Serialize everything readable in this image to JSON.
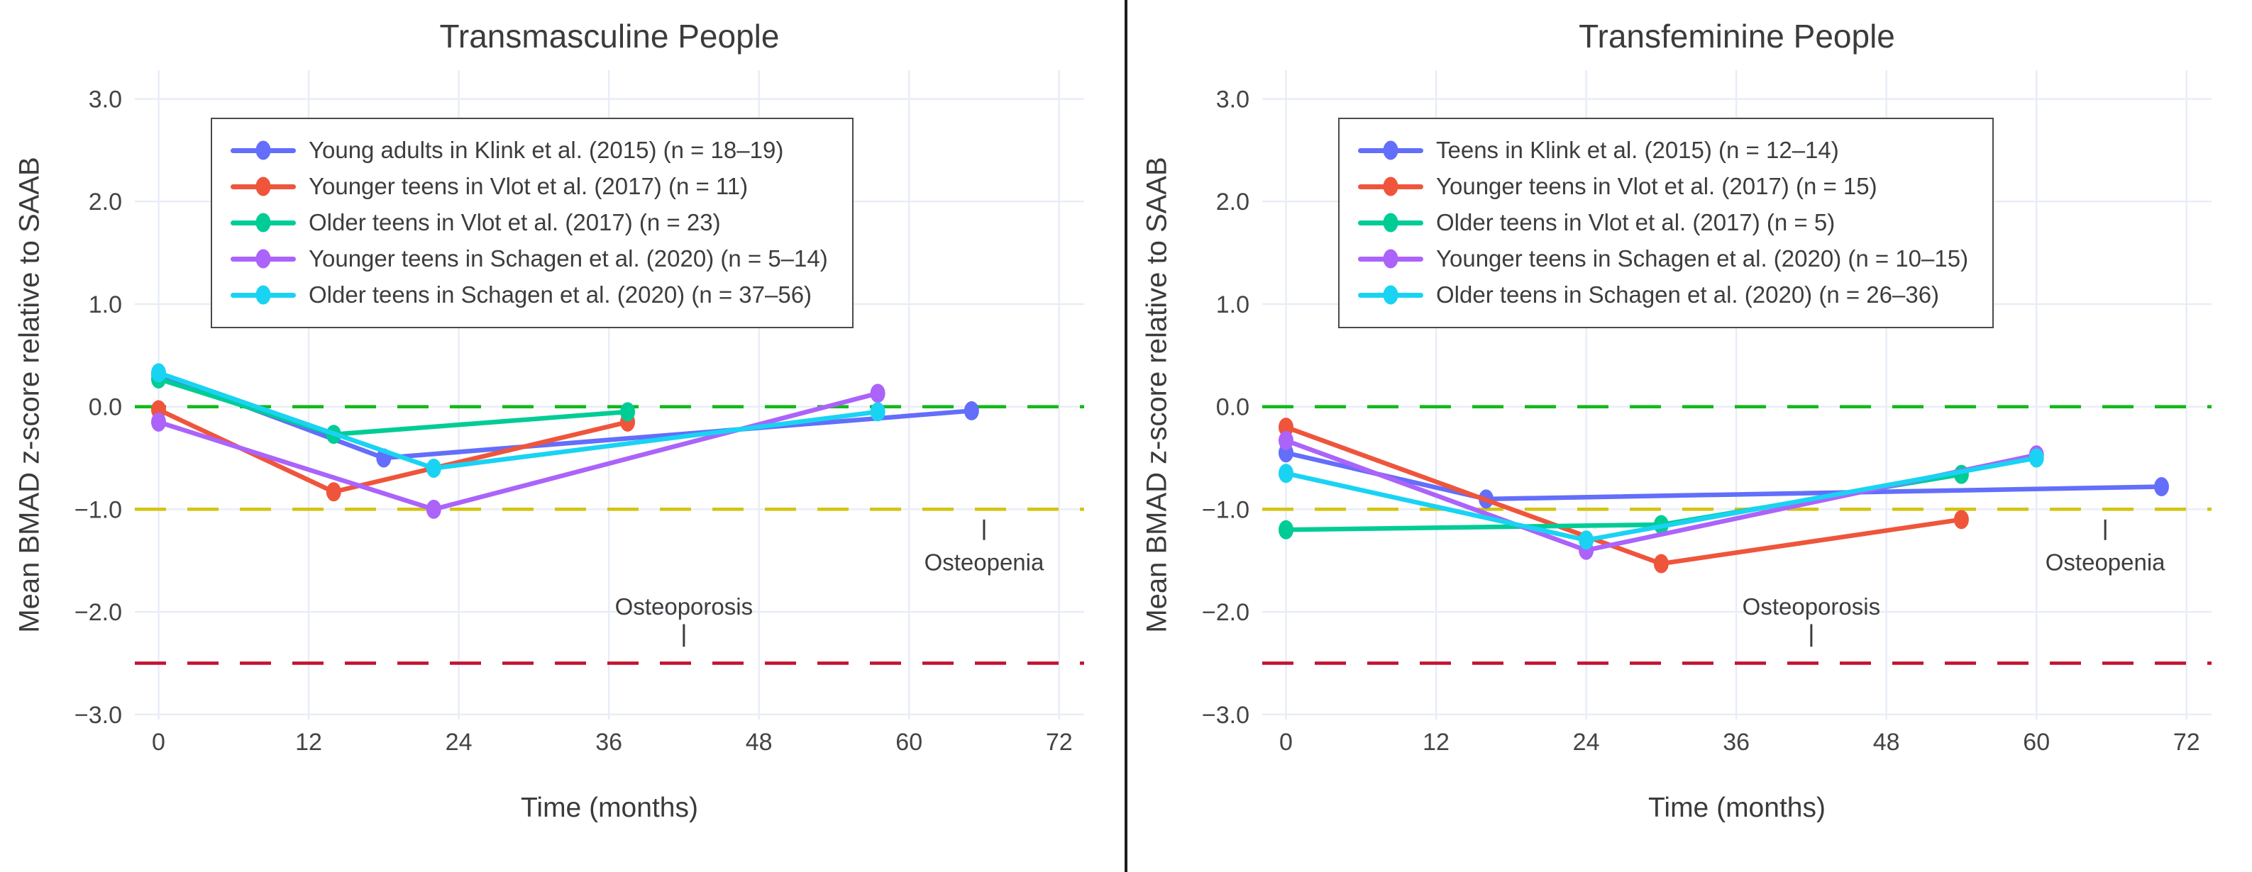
{
  "figure": {
    "background": "#ffffff",
    "divider_color": "#1c1c1c",
    "grid_color": "#e7ecf7",
    "text_color": "#3b3b3b",
    "tick_label_color": "#444444"
  },
  "chart_data": [
    {
      "type": "line",
      "title": "Transmasculine People",
      "xlabel": "Time (months)",
      "ylabel": "Mean BMAD z-score relative to SAAB",
      "xlim": [
        -1.9,
        74
      ],
      "ylim": [
        -3.05,
        3.28
      ],
      "grid": true,
      "legend_position": "top-left",
      "xticks": {
        "values": [
          0,
          12,
          24,
          36,
          48,
          60,
          72
        ],
        "labels": [
          "0",
          "12",
          "24",
          "36",
          "48",
          "60",
          "72"
        ]
      },
      "yticks": {
        "values": [
          3,
          2,
          1,
          0,
          -1,
          -2,
          -3
        ],
        "labels": [
          "3.0",
          "2.0",
          "1.0",
          "0.0",
          "−1.0",
          "−2.0",
          "−3.0"
        ]
      },
      "reference_lines": [
        {
          "name": "zero-line",
          "y": 0,
          "color": "#12b91c",
          "style": "dash"
        },
        {
          "name": "osteopenia-threshold-line",
          "y": -1,
          "color": "#d4c414",
          "style": "dash"
        },
        {
          "name": "osteoporosis-threshold-line",
          "y": -2.5,
          "color": "#c41230",
          "style": "dash"
        }
      ],
      "series": [
        {
          "name": "Young adults in Klink et al. (2015) (n = 18–19)",
          "color": "#636efa",
          "x": [
            0,
            18,
            65
          ],
          "y": [
            0.32,
            -0.5,
            -0.04
          ]
        },
        {
          "name": "Younger teens in Vlot et al. (2017) (n = 11)",
          "color": "#ef553b",
          "x": [
            0,
            14,
            37.5
          ],
          "y": [
            -0.03,
            -0.83,
            -0.15
          ]
        },
        {
          "name": "Older teens in Vlot et al. (2017) (n = 23)",
          "color": "#00cc96",
          "x": [
            0,
            14,
            37.5
          ],
          "y": [
            0.27,
            -0.27,
            -0.05
          ]
        },
        {
          "name": "Younger teens in Schagen et al. (2020) (n = 5–14)",
          "color": "#ab63fa",
          "x": [
            0,
            22,
            57.5
          ],
          "y": [
            -0.15,
            -1.0,
            0.13
          ]
        },
        {
          "name": "Older teens in Schagen et al. (2020) (n = 37–56)",
          "color": "#19d3f3",
          "x": [
            0,
            22,
            57.5
          ],
          "y": [
            0.33,
            -0.6,
            -0.05
          ]
        }
      ],
      "annotations": [
        {
          "name": "osteopenia",
          "text": "Osteopenia",
          "x": 66,
          "text_y": -1.52,
          "tick_from": -1.1,
          "tick_to": -1.3
        },
        {
          "name": "osteoporosis",
          "text": "Osteoporosis",
          "x": 42,
          "text_y": -1.95,
          "tick_from": -2.12,
          "tick_to": -2.34
        }
      ]
    },
    {
      "type": "line",
      "title": "Transfeminine People",
      "xlabel": "Time (months)",
      "ylabel": "Mean BMAD z-score relative to SAAB",
      "xlim": [
        -1.9,
        74
      ],
      "ylim": [
        -3.05,
        3.28
      ],
      "grid": true,
      "legend_position": "top-left",
      "xticks": {
        "values": [
          0,
          12,
          24,
          36,
          48,
          60,
          72
        ],
        "labels": [
          "0",
          "12",
          "24",
          "36",
          "48",
          "60",
          "72"
        ]
      },
      "yticks": {
        "values": [
          3,
          2,
          1,
          0,
          -1,
          -2,
          -3
        ],
        "labels": [
          "3.0",
          "2.0",
          "1.0",
          "0.0",
          "−1.0",
          "−2.0",
          "−3.0"
        ]
      },
      "reference_lines": [
        {
          "name": "zero-line",
          "y": 0,
          "color": "#12b91c",
          "style": "dash"
        },
        {
          "name": "osteopenia-threshold-line",
          "y": -1,
          "color": "#d4c414",
          "style": "dash"
        },
        {
          "name": "osteoporosis-threshold-line",
          "y": -2.5,
          "color": "#c41230",
          "style": "dash"
        }
      ],
      "series": [
        {
          "name": "Teens in Klink et al. (2015) (n = 12–14)",
          "color": "#636efa",
          "x": [
            0,
            16,
            70
          ],
          "y": [
            -0.45,
            -0.9,
            -0.78
          ]
        },
        {
          "name": "Younger teens in Vlot et al. (2017) (n = 15)",
          "color": "#ef553b",
          "x": [
            0,
            30,
            54
          ],
          "y": [
            -0.2,
            -1.53,
            -1.1
          ]
        },
        {
          "name": "Older teens in Vlot et al. (2017) (n = 5)",
          "color": "#00cc96",
          "x": [
            0,
            30,
            54
          ],
          "y": [
            -1.2,
            -1.15,
            -0.66
          ]
        },
        {
          "name": "Younger teens in Schagen et al. (2020) (n = 10–15)",
          "color": "#ab63fa",
          "x": [
            0,
            24,
            60
          ],
          "y": [
            -0.33,
            -1.4,
            -0.47
          ]
        },
        {
          "name": "Older teens in Schagen et al. (2020) (n = 26–36)",
          "color": "#19d3f3",
          "x": [
            0,
            24,
            60
          ],
          "y": [
            -0.65,
            -1.3,
            -0.5
          ]
        }
      ],
      "annotations": [
        {
          "name": "osteopenia",
          "text": "Osteopenia",
          "x": 65.5,
          "text_y": -1.52,
          "tick_from": -1.1,
          "tick_to": -1.3
        },
        {
          "name": "osteoporosis",
          "text": "Osteoporosis",
          "x": 42,
          "text_y": -1.95,
          "tick_from": -2.12,
          "tick_to": -2.34
        }
      ]
    }
  ]
}
